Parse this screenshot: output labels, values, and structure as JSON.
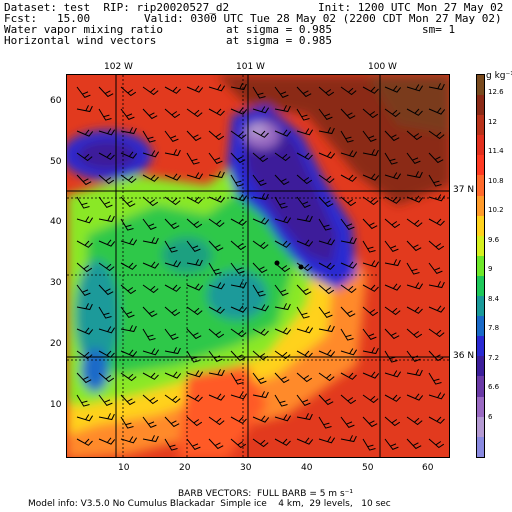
{
  "header": {
    "line1_left": "Dataset: test  RIP: rip20020527_d2",
    "line1_right": "Init: 1200 UTC Mon 27 May 02",
    "line2_left": "Fcst:   15.00",
    "line2_right": "Valid: 0300 UTC Tue 28 May 02 (2200 CDT Mon 27 May 02)",
    "line3_left": "Water vapor mixing ratio",
    "line3_mid": "at sigma = 0.985",
    "line3_right": "sm= 1",
    "line4_left": "Horizontal wind vectors",
    "line4_mid": "at sigma = 0.985"
  },
  "map": {
    "longitudes": [
      "102 W",
      "101 W",
      "100 W"
    ],
    "latitudes": [
      "37 N",
      "36 N"
    ],
    "x_ticks": [
      "10",
      "20",
      "30",
      "40",
      "50",
      "60"
    ],
    "y_ticks": [
      "60",
      "50",
      "40",
      "30",
      "20",
      "10"
    ]
  },
  "colorbar": {
    "unit": "g kg⁻¹",
    "labels": [
      "12.6",
      "12",
      "11.4",
      "10.8",
      "10.2",
      "9.6",
      "9",
      "8.4",
      "7.8",
      "7.2",
      "6.6",
      "6"
    ],
    "colors": [
      "#7a4a1e",
      "#8b2a16",
      "#b8321a",
      "#e2301e",
      "#ff3a22",
      "#ff6a2c",
      "#ff9a2a",
      "#ffd21e",
      "#d6f020",
      "#6ee82a",
      "#1ec85a",
      "#1a9a9a",
      "#1a6ac8",
      "#2a2ad2",
      "#3c1e9a",
      "#6a3aa6",
      "#9a6ac2",
      "#b49ad2",
      "#8a8ae0"
    ]
  },
  "footer": {
    "barb_line": "BARB VECTORS:  FULL BARB = 5 m s⁻¹",
    "model_line": "Model info: V3.5.0 No Cumulus Blackadar  Simple ice    4 km,  29 levels,   10 sec"
  }
}
